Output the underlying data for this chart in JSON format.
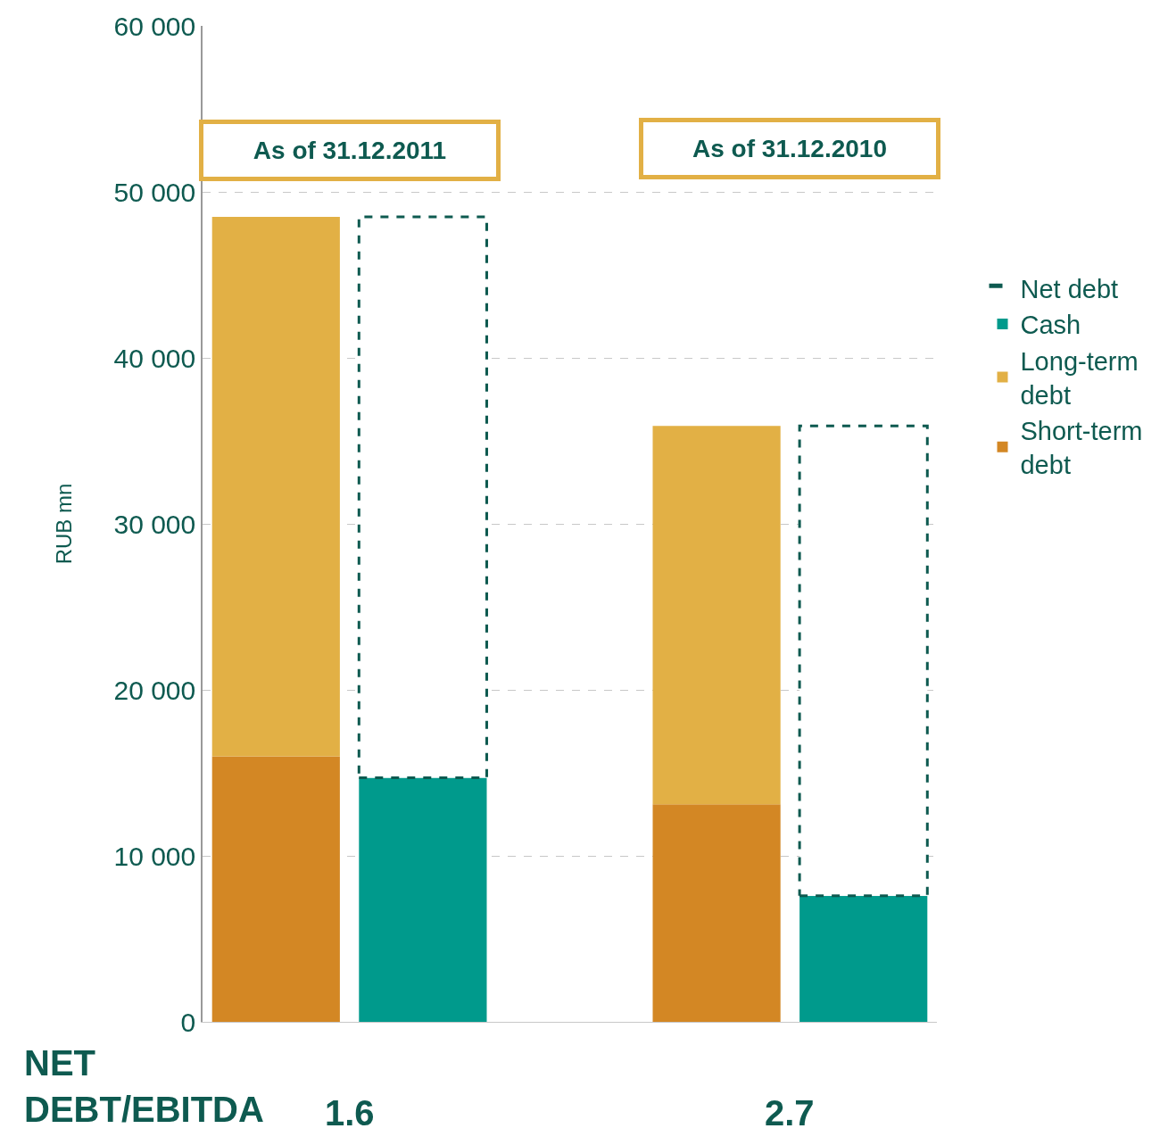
{
  "chart_data": {
    "type": "bar",
    "stacked": true,
    "ylabel": "RUB mn",
    "categories": [
      null,
      null,
      null,
      null,
      null
    ],
    "series": [
      {
        "name": "Short-term debt",
        "color": "#d38724",
        "values": [
          16000,
          null,
          null,
          13100,
          null
        ]
      },
      {
        "name": "Long-term debt",
        "color": "#e2b045",
        "values": [
          32500,
          null,
          null,
          22800,
          null
        ]
      },
      {
        "name": "Cash",
        "color": "#009a8c",
        "values": [
          null,
          14700,
          null,
          null,
          7600
        ]
      },
      {
        "name": "Net debt",
        "color": "#0e5a50",
        "line_style": "dashed",
        "values": [
          null,
          33800,
          null,
          null,
          28300
        ]
      }
    ],
    "ylim": [
      0,
      60000
    ],
    "yticks": [
      {
        "value": 0,
        "label": "0"
      },
      {
        "value": 10000,
        "label": "10 000"
      },
      {
        "value": 20000,
        "label": "20 000"
      },
      {
        "value": 30000,
        "label": "30 000"
      },
      {
        "value": 40000,
        "label": "40 000"
      },
      {
        "value": 50000,
        "label": "50 000"
      },
      {
        "value": 60000,
        "label": "60 000"
      }
    ],
    "grid": "y",
    "legend": "right",
    "annotations": [
      "As of 31.12.2011",
      "As of 31.12.2010",
      "NET DEBT/EBITDA",
      "1.6",
      "2.7"
    ]
  }
}
